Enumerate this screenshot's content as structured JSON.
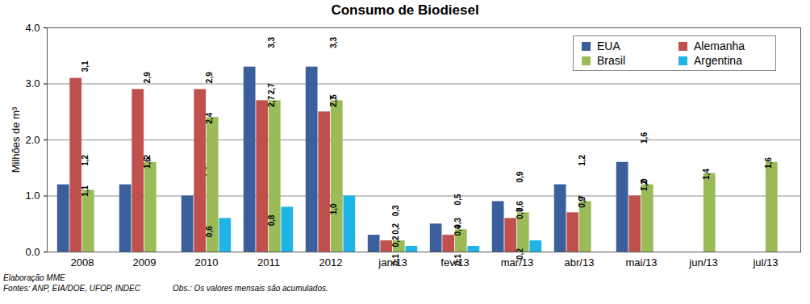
{
  "chart_data": {
    "type": "bar",
    "title": "Consumo de Biodiesel",
    "y_label": "Milhões de m³",
    "annotations": [
      "Elaboração MME",
      "Fontes: ANP, EIA/DOE, UFOP, INDEC",
      "Obs.: Os valores mensais são acumulados."
    ],
    "categories": [
      "2008",
      "2009",
      "2010",
      "2011",
      "2012",
      "jan/13",
      "fev/13",
      "mar/13",
      "abr/13",
      "mai/13",
      "jun/13",
      "jul/13"
    ],
    "series": [
      {
        "name": "EUA",
        "color": "#3b5f9a",
        "values": [
          1.2,
          1.2,
          1.0,
          3.3,
          3.3,
          0.3,
          0.5,
          0.9,
          1.2,
          1.6,
          null,
          null
        ],
        "value_labels": [
          "1,2",
          "1,2",
          "1,0",
          "3,3",
          "3,3",
          "0,3",
          "0,5",
          "0,9",
          "1,2",
          "1,6",
          null,
          null
        ]
      },
      {
        "name": "Alemanha",
        "color": "#c0504d",
        "values": [
          3.1,
          2.9,
          2.9,
          2.7,
          2.5,
          0.2,
          0.3,
          0.6,
          0.7,
          1.0,
          null,
          null
        ],
        "value_labels": [
          "3,1",
          "2,9",
          "2,9",
          "2,7",
          "2,5",
          "0,2",
          "0,3",
          "0,6",
          "0,7",
          "1,0",
          null,
          null
        ]
      },
      {
        "name": "Brasil",
        "color": "#9bbb59",
        "values": [
          1.1,
          1.6,
          2.4,
          2.7,
          2.7,
          0.2,
          0.4,
          0.7,
          0.9,
          1.2,
          1.4,
          1.6
        ],
        "value_labels": [
          "1,1",
          "1,6",
          "2,4",
          "2,7",
          "2,7",
          "0,2",
          "0,4",
          "0,7",
          "0,9",
          "1,2",
          "1,4",
          "1,6"
        ]
      },
      {
        "name": "Argentina",
        "color": "#1fb4e6",
        "values": [
          null,
          null,
          0.6,
          0.8,
          1.0,
          0.1,
          0.1,
          0.2,
          null,
          null,
          null,
          null
        ],
        "value_labels": [
          null,
          null,
          "0,6",
          "0,8",
          "1,0",
          "0,1",
          "0,1",
          "0,2",
          null,
          null,
          null,
          null
        ]
      }
    ],
    "ylim": [
      0,
      4
    ],
    "yticks": [
      0,
      1,
      2,
      3,
      4
    ],
    "grid": true,
    "legend": "top-right",
    "data_labels": true
  }
}
